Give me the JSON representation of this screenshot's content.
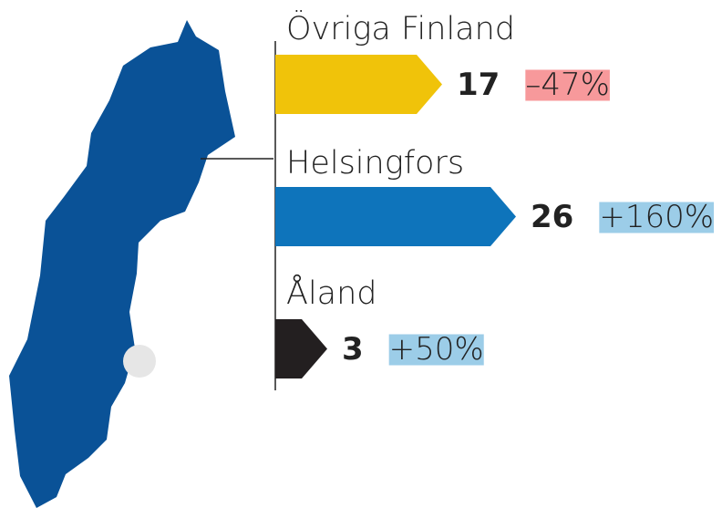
{
  "chart_data": {
    "type": "bar",
    "categories": [
      "Övriga Finland",
      "Helsingfors",
      "Åland"
    ],
    "values": [
      17,
      26,
      3
    ],
    "colors": [
      "#f0c30a",
      "#0e74bb",
      "#231f20"
    ],
    "changes": [
      {
        "value": -47,
        "label": "–47%"
      },
      {
        "value": 160,
        "label": "+160%"
      },
      {
        "value": 50,
        "label": "+50%"
      }
    ]
  }
}
